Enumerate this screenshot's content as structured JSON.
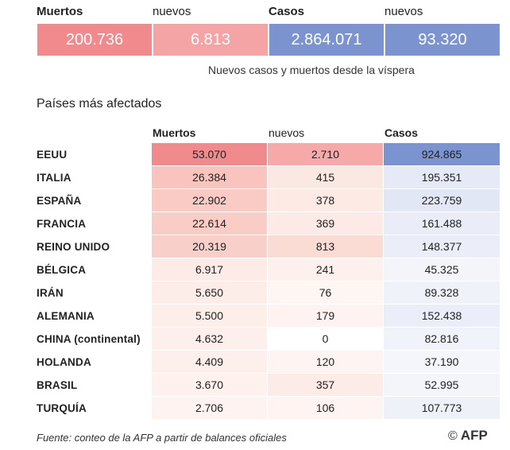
{
  "summary": {
    "deaths_label": "Muertos",
    "new_label_1": "nuevos",
    "cases_label": "Casos",
    "new_label_2": "nuevos",
    "deaths_value": "200.736",
    "deaths_new_value": "6.813",
    "cases_value": "2.864.071",
    "cases_new_value": "93.320",
    "caption": "Nuevos casos y muertos desde la víspera"
  },
  "table": {
    "title": "Países más afectados",
    "headers": {
      "deaths": "Muertos",
      "new": "nuevos",
      "cases": "Casos"
    },
    "rows": [
      {
        "country": "EEUU",
        "deaths": "53.070",
        "new": "2.710",
        "cases": "924.865",
        "deaths_bg": "#f08a8c",
        "new_bg": "#f6a9a8",
        "cases_bg": "#7b93cf"
      },
      {
        "country": "ITALIA",
        "deaths": "26.384",
        "new": "415",
        "cases": "195.351",
        "deaths_bg": "#f8c4bd",
        "new_bg": "#fce8e3",
        "cases_bg": "#e6eaf6"
      },
      {
        "country": "ESPAÑA",
        "deaths": "22.902",
        "new": "378",
        "cases": "223.759",
        "deaths_bg": "#f9cbc4",
        "new_bg": "#fdeae5",
        "cases_bg": "#e2e7f5"
      },
      {
        "country": "FRANCIA",
        "deaths": "22.614",
        "new": "369",
        "cases": "161.488",
        "deaths_bg": "#f9ccc5",
        "new_bg": "#fdeae6",
        "cases_bg": "#eaedf7"
      },
      {
        "country": "REINO UNIDO",
        "deaths": "20.319",
        "new": "813",
        "cases": "148.377",
        "deaths_bg": "#f9d0c9",
        "new_bg": "#fbdcd5",
        "cases_bg": "#ebeef8"
      },
      {
        "country": "BÉLGICA",
        "deaths": "6.917",
        "new": "241",
        "cases": "45.325",
        "deaths_bg": "#fdebe7",
        "new_bg": "#fef0ec",
        "cases_bg": "#f4f5fb"
      },
      {
        "country": "IRÁN",
        "deaths": "5.650",
        "new": "76",
        "cases": "89.328",
        "deaths_bg": "#fdede9",
        "new_bg": "#fef6f3",
        "cases_bg": "#f0f2fa"
      },
      {
        "country": "ALEMANIA",
        "deaths": "5.500",
        "new": "179",
        "cases": "152.438",
        "deaths_bg": "#fdeeea",
        "new_bg": "#fef3f0",
        "cases_bg": "#ebeef8"
      },
      {
        "country": "CHINA (continental)",
        "deaths": "4.632",
        "new": "0",
        "cases": "82.816",
        "deaths_bg": "#fdefeb",
        "new_bg": "#ffffff",
        "cases_bg": "#f1f3fa"
      },
      {
        "country": "HOLANDA",
        "deaths": "4.409",
        "new": "120",
        "cases": "37.190",
        "deaths_bg": "#fdf0ec",
        "new_bg": "#fef5f2",
        "cases_bg": "#f5f6fb"
      },
      {
        "country": "BRASIL",
        "deaths": "3.670",
        "new": "357",
        "cases": "52.995",
        "deaths_bg": "#fef1ee",
        "new_bg": "#fdebe7",
        "cases_bg": "#f3f5fb"
      },
      {
        "country": "TURQUÍA",
        "deaths": "2.706",
        "new": "106",
        "cases": "107.773",
        "deaths_bg": "#fef3f0",
        "new_bg": "#fef5f3",
        "cases_bg": "#eff1f9"
      }
    ]
  },
  "colors": {
    "deaths_total": "#f08a8c",
    "deaths_new": "#f4a4a4",
    "cases_total": "#7b93cf",
    "cases_new": "#7b93cf"
  },
  "footer": {
    "source": "Fuente: conteo de la AFP a partir de balances oficiales",
    "copyright": "©",
    "logo": "AFP"
  }
}
